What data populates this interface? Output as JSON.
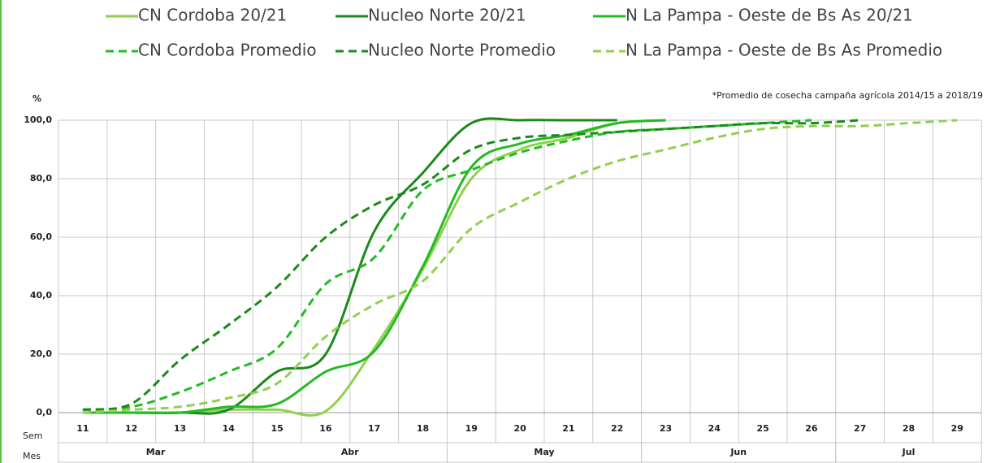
{
  "chart_data": {
    "type": "line",
    "y_label": "%",
    "annotation": "*Promedio de cosecha campaña agrícola 2014/15 a 2018/19",
    "x_label": "Sem",
    "month_label": "Mes",
    "categories": [
      "11",
      "12",
      "13",
      "14",
      "15",
      "16",
      "17",
      "18",
      "19",
      "20",
      "21",
      "22",
      "23",
      "24",
      "25",
      "26",
      "27",
      "28",
      "29"
    ],
    "months": [
      {
        "name": "Mar",
        "from": 0,
        "to": 3
      },
      {
        "name": "Abr",
        "from": 4,
        "to": 7
      },
      {
        "name": "May",
        "from": 8,
        "to": 11
      },
      {
        "name": "Jun",
        "from": 12,
        "to": 15
      },
      {
        "name": "Jul",
        "from": 16,
        "to": 18
      }
    ],
    "ylim": [
      0,
      100
    ],
    "yticks": [
      {
        "value": 0,
        "label": "0,0"
      },
      {
        "value": 20,
        "label": "20,0"
      },
      {
        "value": 40,
        "label": "40,0"
      },
      {
        "value": 60,
        "label": "60,0"
      },
      {
        "value": 80,
        "label": "80,0"
      },
      {
        "value": 100,
        "label": "100,0"
      }
    ],
    "grid": true,
    "series": [
      {
        "name": "CN Cordoba 20/21",
        "color": "#8fd14f",
        "dash": false,
        "values": [
          0,
          0,
          0,
          1,
          1,
          0.5,
          22,
          49,
          80,
          90,
          94,
          99,
          100,
          null,
          null,
          null,
          null,
          null,
          null
        ]
      },
      {
        "name": "Nucleo Norte 20/21",
        "color": "#1a8a1a",
        "dash": false,
        "values": [
          0,
          0,
          0,
          1,
          14,
          20,
          62,
          82,
          99,
          100,
          100,
          100,
          null,
          null,
          null,
          null,
          null,
          null,
          null
        ]
      },
      {
        "name": "N La Pampa - Oeste de Bs As 20/21",
        "color": "#22bb22",
        "dash": false,
        "values": [
          0,
          0,
          0,
          2,
          3,
          14,
          21,
          50,
          84,
          92,
          95,
          99,
          100,
          null,
          null,
          null,
          null,
          null,
          null
        ]
      },
      {
        "name": "CN Cordoba Promedio",
        "color": "#22bb22",
        "dash": true,
        "values": [
          1,
          2,
          7,
          14,
          22,
          44,
          53,
          76,
          83,
          89,
          93,
          96,
          97,
          98,
          99,
          100,
          null,
          null,
          null
        ]
      },
      {
        "name": "Nucleo Norte  Promedio",
        "color": "#1a8a1a",
        "dash": true,
        "values": [
          1,
          3,
          18,
          30,
          43,
          60,
          71,
          78,
          90,
          94,
          95,
          96,
          97,
          98,
          99,
          99,
          100,
          null,
          null
        ]
      },
      {
        "name": "N La Pampa - Oeste de Bs As  Promedio",
        "color": "#8fd14f",
        "dash": true,
        "values": [
          0,
          1,
          2,
          5,
          10,
          26,
          37,
          45,
          63,
          72,
          80,
          86,
          90,
          94,
          97,
          98,
          98,
          99,
          100
        ]
      }
    ]
  }
}
